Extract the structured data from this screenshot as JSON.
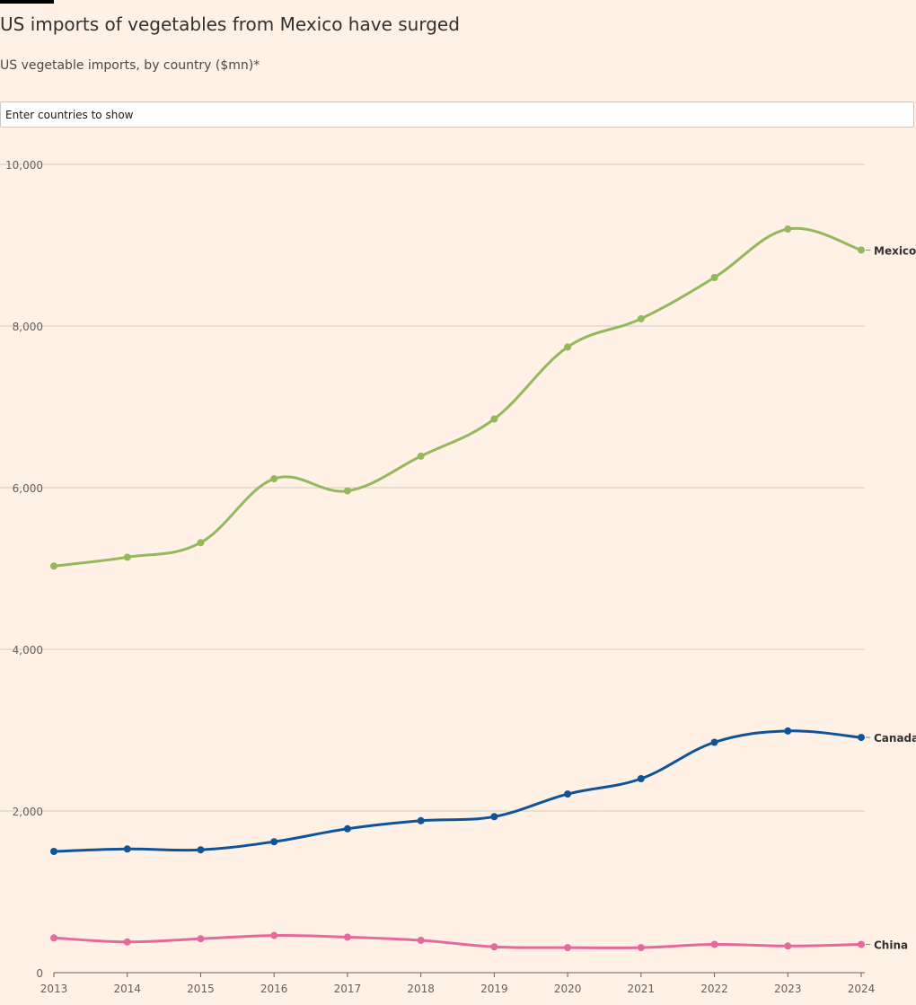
{
  "header": {
    "title": "US imports of vegetables from Mexico have surged",
    "subtitle": "US vegetable imports, by country ($mn)*"
  },
  "search": {
    "placeholder": "Enter countries to show"
  },
  "colors": {
    "background": "#fff1e5",
    "gridline": "#d6c9bd",
    "axis": "#66605c"
  },
  "chart_data": {
    "type": "line",
    "x": [
      2013,
      2014,
      2015,
      2016,
      2017,
      2018,
      2019,
      2020,
      2021,
      2022,
      2023,
      2024
    ],
    "xlim": [
      2013,
      2024
    ],
    "ylim": [
      0,
      10000
    ],
    "yticks": [
      0,
      2000,
      4000,
      6000,
      8000,
      10000
    ],
    "ytick_labels": [
      "0",
      "2,000",
      "4,000",
      "6,000",
      "8,000",
      "10,000"
    ],
    "xtick_labels": [
      "2013",
      "2014",
      "2015",
      "2016",
      "2017",
      "2018",
      "2019",
      "2020",
      "2021",
      "2022",
      "2023",
      "2024"
    ],
    "grid": true,
    "legend": "direct labels at line ends",
    "series": [
      {
        "name": "Mexico",
        "color": "#96b85d",
        "values": [
          5030,
          5140,
          5320,
          6110,
          5960,
          6390,
          6850,
          7740,
          8090,
          8600,
          9200,
          8940
        ]
      },
      {
        "name": "Canada",
        "color": "#0f5499",
        "values": [
          1500,
          1530,
          1520,
          1620,
          1780,
          1880,
          1930,
          2210,
          2400,
          2850,
          2990,
          2910
        ]
      },
      {
        "name": "China",
        "color": "#e6699b",
        "values": [
          430,
          380,
          420,
          460,
          440,
          400,
          320,
          310,
          310,
          350,
          330,
          350
        ]
      }
    ]
  }
}
